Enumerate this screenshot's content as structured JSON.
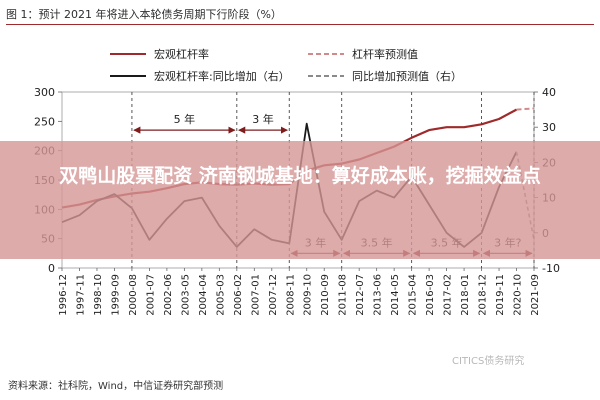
{
  "title": "图 1：预计 2021 年将进入本轮债务周期下行阶段（%）",
  "banner": "双鸭山股票配资 济南钢城基地：算好成本账，挖掘效益点",
  "source": "资料来源：社科院，Wind，中信证券研究部预测",
  "watermark": "CITICS债务研究",
  "colors": {
    "leverage": "#9e2a2b",
    "growth": "#1a1a1a",
    "forecast": "#d08a8a",
    "accent": "#7f1d1d",
    "growth_forecast": "#8a8a8a"
  },
  "chart_data": {
    "type": "line",
    "title": "预计 2021 年将进入本轮债务周期下行阶段（%）",
    "x": [
      "1996-12",
      "1997-11",
      "1998-10",
      "1999-09",
      "2000-08",
      "2001-07",
      "2002-06",
      "2003-05",
      "2004-04",
      "2005-03",
      "2006-02",
      "2007-01",
      "2007-12",
      "2008-11",
      "2009-10",
      "2010-09",
      "2011-08",
      "2012-07",
      "2013-06",
      "2014-05",
      "2015-04",
      "2016-03",
      "2017-02",
      "2018-01",
      "2018-12",
      "2019-11",
      "2020-10",
      "2021-09"
    ],
    "y_left": {
      "min": 0,
      "max": 300,
      "ticks": [
        0,
        50,
        100,
        150,
        200,
        250,
        300
      ]
    },
    "y_right": {
      "min": -10,
      "max": 40,
      "ticks": [
        -10,
        0,
        10,
        20,
        30,
        40
      ]
    },
    "legend": [
      {
        "label": "宏观杠杆率",
        "style": "solid",
        "color": "#9e2a2b"
      },
      {
        "label": "杠杆率预测值",
        "style": "dashed",
        "color": "#d08a8a"
      },
      {
        "label": "宏观杠杆率:同比增加（右）",
        "style": "solid",
        "color": "#1a1a1a"
      },
      {
        "label": "同比增加预测值（右）",
        "style": "dashed",
        "color": "#8a8a8a"
      }
    ],
    "legend_position": "top",
    "series": [
      {
        "name": "宏观杠杆率",
        "axis": "left",
        "x": [
          "1996-12",
          "1997-11",
          "1998-10",
          "1999-09",
          "2000-08",
          "2001-07",
          "2002-06",
          "2003-05",
          "2004-04",
          "2005-03",
          "2006-02",
          "2007-01",
          "2007-12",
          "2008-11",
          "2009-10",
          "2010-09",
          "2011-08",
          "2012-07",
          "2013-06",
          "2014-05",
          "2015-04",
          "2016-03",
          "2017-02",
          "2018-01",
          "2018-12",
          "2019-11",
          "2020-10"
        ],
        "y": [
          103,
          108,
          116,
          122,
          127,
          130,
          136,
          143,
          146,
          143,
          142,
          144,
          142,
          143,
          166,
          175,
          178,
          185,
          196,
          207,
          222,
          235,
          240,
          240,
          245,
          254,
          270
        ]
      },
      {
        "name": "杠杆率预测值",
        "axis": "left",
        "x": [
          "2020-10",
          "2021-09"
        ],
        "y": [
          270,
          272
        ]
      },
      {
        "name": "宏观杠杆率:同比增加（右）",
        "axis": "right",
        "x": [
          "1996-12",
          "1997-11",
          "1998-10",
          "1999-09",
          "2000-08",
          "2001-07",
          "2002-06",
          "2003-05",
          "2004-04",
          "2005-03",
          "2006-02",
          "2007-01",
          "2007-12",
          "2008-11",
          "2009-10",
          "2010-09",
          "2011-08",
          "2012-07",
          "2013-06",
          "2014-05",
          "2015-04",
          "2016-03",
          "2017-02",
          "2018-01",
          "2018-12",
          "2019-11",
          "2020-10"
        ],
        "y": [
          3,
          5,
          9,
          11,
          7,
          -2,
          4,
          9,
          10,
          2,
          -4,
          1,
          -2,
          -3,
          31,
          6,
          -2,
          9,
          12,
          10,
          16,
          8,
          0,
          -4,
          0,
          13,
          23
        ]
      },
      {
        "name": "同比增加预测值（右）",
        "axis": "right",
        "x": [
          "2020-10",
          "2021-09"
        ],
        "y": [
          23,
          -2
        ]
      }
    ],
    "annotations": [
      {
        "text": "5 年",
        "from": "2000-08",
        "to": "2006-02",
        "level": 235,
        "axis": "left"
      },
      {
        "text": "3 年",
        "from": "2006-02",
        "to": "2008-11",
        "level": 235,
        "axis": "left"
      },
      {
        "text": "3 年",
        "from": "2008-11",
        "to": "2011-08",
        "level": 25,
        "axis": "left"
      },
      {
        "text": "3.5 年",
        "from": "2011-08",
        "to": "2015-04",
        "level": 25,
        "axis": "left"
      },
      {
        "text": "3.5 年",
        "from": "2015-04",
        "to": "2018-12",
        "level": 25,
        "axis": "left"
      },
      {
        "text": "3 年?",
        "from": "2018-12",
        "to": "2021-09",
        "level": 25,
        "axis": "left"
      }
    ],
    "vlines": [
      "2000-08",
      "2006-02",
      "2008-11",
      "2011-08",
      "2015-04",
      "2018-12",
      "2021-09"
    ]
  }
}
